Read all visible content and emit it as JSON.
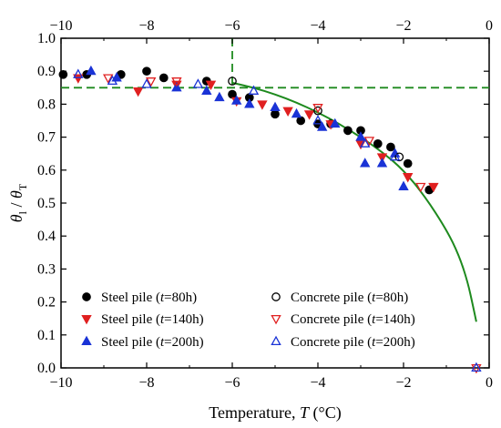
{
  "chart_data": {
    "type": "scatter",
    "title": "",
    "xlabel": {
      "prefix": "Temperature, ",
      "var": "T",
      "unit": " (°C)"
    },
    "ylabel": {
      "num": "θ",
      "num_sub": "l",
      "slash": " / ",
      "den": "θ",
      "den_sub": "T"
    },
    "xlim": [
      -10,
      0
    ],
    "ylim": [
      0.0,
      1.0
    ],
    "x_ticks": [
      -10,
      -8,
      -6,
      -4,
      -2,
      0
    ],
    "x_tick_labels": [
      "−10",
      "−8",
      "−6",
      "−4",
      "−2",
      "0"
    ],
    "top_tick_labels": [
      "−10",
      "−8",
      "−6",
      "−4",
      "−2",
      "0"
    ],
    "y_ticks": [
      0.0,
      0.1,
      0.2,
      0.3,
      0.4,
      0.5,
      0.6,
      0.7,
      0.8,
      0.9,
      1.0
    ],
    "y_tick_labels": [
      "0.0",
      "0.1",
      "0.2",
      "0.3",
      "0.4",
      "0.5",
      "0.6",
      "0.7",
      "0.8",
      "0.9",
      "1.0"
    ],
    "grid": false,
    "legend_position": "bottom",
    "reference_lines": {
      "horizontal_y": 0.85,
      "vertical_x": -6,
      "color": "#1e8a1e"
    },
    "fit_curve": {
      "color": "#1e8a1e",
      "points": [
        [
          -6,
          0.865
        ],
        [
          -5.5,
          0.85
        ],
        [
          -5,
          0.83
        ],
        [
          -4.5,
          0.805
        ],
        [
          -4,
          0.775
        ],
        [
          -3.5,
          0.74
        ],
        [
          -3,
          0.7
        ],
        [
          -2.5,
          0.655
        ],
        [
          -2,
          0.6
        ],
        [
          -1.5,
          0.52
        ],
        [
          -1.0,
          0.42
        ],
        [
          -0.7,
          0.34
        ],
        [
          -0.5,
          0.26
        ],
        [
          -0.38,
          0.19
        ],
        [
          -0.3,
          0.14
        ]
      ]
    },
    "series": [
      {
        "name_prefix": "Steel pile (",
        "name_var": "t",
        "name_suffix": "=80h)",
        "marker": "circle",
        "filled": true,
        "color": "#000000",
        "points": [
          [
            -9.95,
            0.89
          ],
          [
            -9.4,
            0.89
          ],
          [
            -8.6,
            0.89
          ],
          [
            -8.0,
            0.9
          ],
          [
            -7.6,
            0.88
          ],
          [
            -6.6,
            0.87
          ],
          [
            -6.0,
            0.83
          ],
          [
            -5.6,
            0.82
          ],
          [
            -5.0,
            0.77
          ],
          [
            -4.4,
            0.75
          ],
          [
            -4.0,
            0.74
          ],
          [
            -3.7,
            0.74
          ],
          [
            -3.3,
            0.72
          ],
          [
            -3.0,
            0.72
          ],
          [
            -2.6,
            0.68
          ],
          [
            -2.3,
            0.67
          ],
          [
            -1.9,
            0.62
          ],
          [
            -1.4,
            0.54
          ]
        ]
      },
      {
        "name_prefix": "Steel pile (",
        "name_var": "t",
        "name_suffix": "=140h)",
        "marker": "triangle-down",
        "filled": true,
        "color": "#e02020",
        "points": [
          [
            -9.6,
            0.88
          ],
          [
            -8.2,
            0.84
          ],
          [
            -7.3,
            0.86
          ],
          [
            -6.5,
            0.86
          ],
          [
            -5.9,
            0.81
          ],
          [
            -5.3,
            0.8
          ],
          [
            -4.7,
            0.78
          ],
          [
            -4.2,
            0.77
          ],
          [
            -3.7,
            0.74
          ],
          [
            -3.0,
            0.68
          ],
          [
            -2.5,
            0.64
          ],
          [
            -1.9,
            0.58
          ],
          [
            -1.3,
            0.55
          ]
        ]
      },
      {
        "name_prefix": "Steel pile (",
        "name_var": "t",
        "name_suffix": "=200h)",
        "marker": "triangle-up",
        "filled": true,
        "color": "#1a33d6",
        "points": [
          [
            -9.3,
            0.9
          ],
          [
            -8.7,
            0.88
          ],
          [
            -7.3,
            0.85
          ],
          [
            -6.6,
            0.84
          ],
          [
            -6.3,
            0.82
          ],
          [
            -5.9,
            0.81
          ],
          [
            -5.6,
            0.8
          ],
          [
            -5.0,
            0.79
          ],
          [
            -4.5,
            0.77
          ],
          [
            -3.9,
            0.73
          ],
          [
            -3.6,
            0.74
          ],
          [
            -3.0,
            0.7
          ],
          [
            -2.9,
            0.62
          ],
          [
            -2.5,
            0.62
          ],
          [
            -2.2,
            0.65
          ],
          [
            -2.0,
            0.55
          ]
        ]
      },
      {
        "name_prefix": "Concrete pile (",
        "name_var": "t",
        "name_suffix": "=80h)",
        "marker": "circle",
        "filled": false,
        "color": "#000000",
        "points": [
          [
            -6.0,
            0.87
          ],
          [
            -4.0,
            0.78
          ],
          [
            -2.1,
            0.64
          ]
        ]
      },
      {
        "name_prefix": "Concrete pile (",
        "name_var": "t",
        "name_suffix": "=140h)",
        "marker": "triangle-down",
        "filled": false,
        "color": "#e02020",
        "points": [
          [
            -8.9,
            0.88
          ],
          [
            -7.9,
            0.87
          ],
          [
            -7.3,
            0.87
          ],
          [
            -4.0,
            0.79
          ],
          [
            -2.8,
            0.69
          ],
          [
            -1.6,
            0.55
          ],
          [
            -0.3,
            0.0
          ]
        ]
      },
      {
        "name_prefix": "Concrete pile (",
        "name_var": "t",
        "name_suffix": "=200h)",
        "marker": "triangle-up",
        "filled": false,
        "color": "#1a33d6",
        "points": [
          [
            -9.6,
            0.89
          ],
          [
            -8.8,
            0.87
          ],
          [
            -8.0,
            0.86
          ],
          [
            -6.8,
            0.86
          ],
          [
            -5.5,
            0.84
          ],
          [
            -4.0,
            0.75
          ],
          [
            -2.9,
            0.68
          ],
          [
            -2.2,
            0.64
          ],
          [
            -0.3,
            0.0
          ]
        ]
      }
    ]
  }
}
